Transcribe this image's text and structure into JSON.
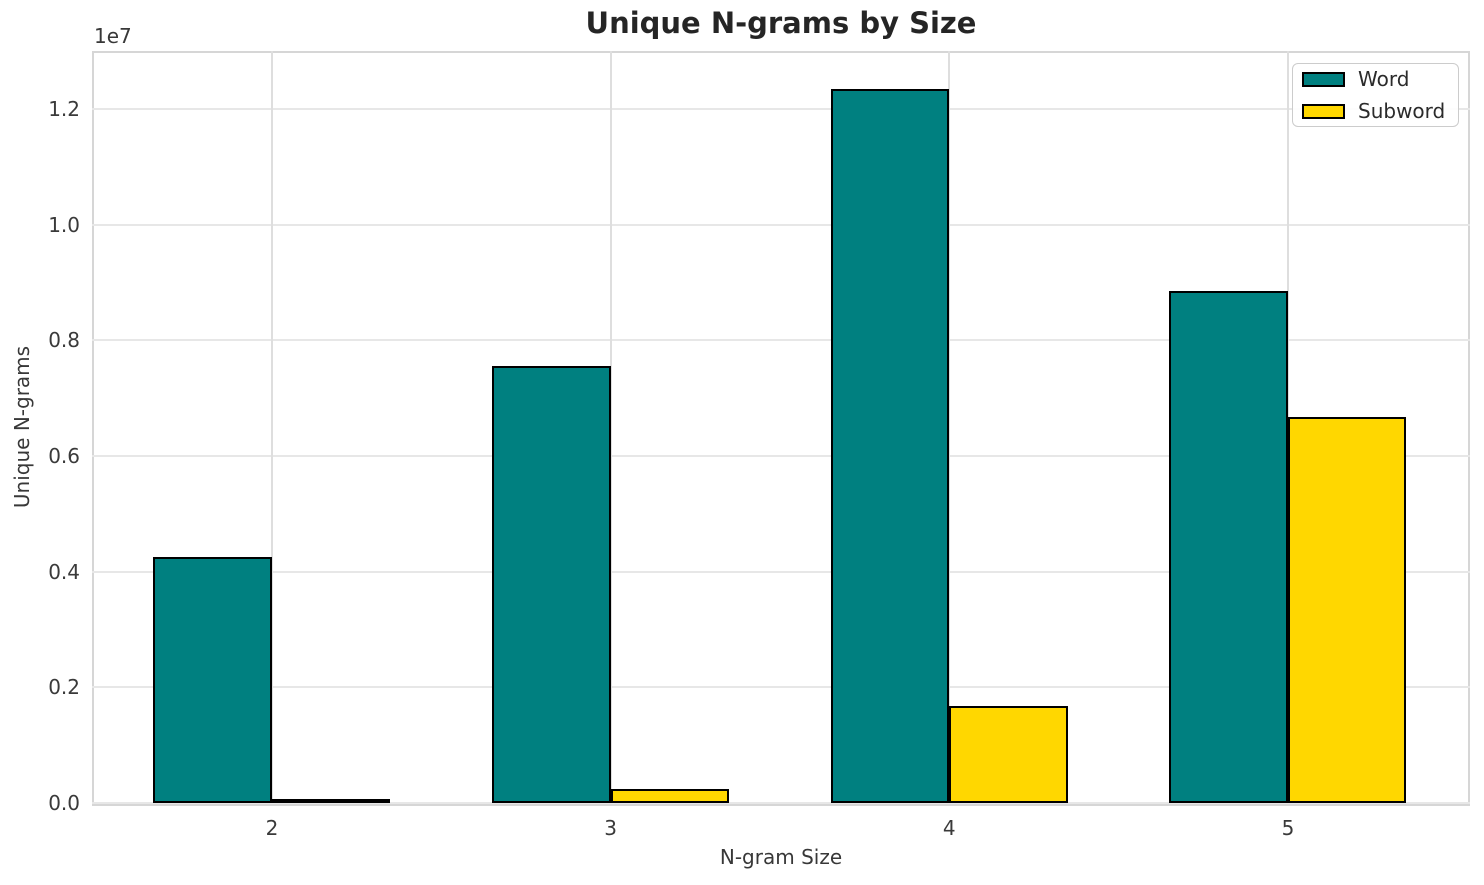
{
  "chart_data": {
    "type": "bar",
    "title": "Unique N-grams by Size",
    "xlabel": "N-gram Size",
    "ylabel": "Unique N-grams",
    "y_offset_text": "1e7",
    "categories": [
      "2",
      "3",
      "4",
      "5"
    ],
    "series": [
      {
        "name": "Word",
        "color": "#008080",
        "values": [
          4250000,
          7550000,
          12340000,
          8850000
        ]
      },
      {
        "name": "Subword",
        "color": "#FFD700",
        "values": [
          30000,
          240000,
          1680000,
          6670000
        ]
      }
    ],
    "bar_edge_color": "#000000",
    "bar_width_data_units": 0.35,
    "xticks": [
      2,
      3,
      4,
      5
    ],
    "xlim": [
      1.4686,
      5.5375
    ],
    "yticks": [
      0,
      2000000,
      4000000,
      6000000,
      8000000,
      10000000,
      12000000
    ],
    "ytick_labels": [
      "0.0",
      "0.2",
      "0.4",
      "0.6",
      "0.8",
      "1.0",
      "1.2"
    ],
    "ylim": [
      0,
      13000000
    ],
    "grid": true,
    "legend_position": "upper right",
    "colors": {
      "grid": "#e7e7e7",
      "spine": "#d6d6d6",
      "background": "#ffffff"
    }
  }
}
